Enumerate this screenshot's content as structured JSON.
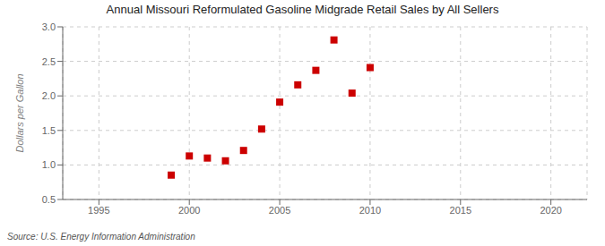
{
  "chart_data": {
    "type": "scatter",
    "title": "Annual Missouri Reformulated Gasoline Midgrade Retail Sales by All Sellers",
    "ylabel": "Dollars per Gallon",
    "annotations": [
      "Source: U.S. Energy Information Administration"
    ],
    "x": [
      1999,
      2000,
      2001,
      2002,
      2003,
      2004,
      2005,
      2006,
      2007,
      2008,
      2009,
      2010
    ],
    "values": [
      0.853,
      1.13,
      1.1,
      1.06,
      1.21,
      1.52,
      1.91,
      2.16,
      2.37,
      2.81,
      2.04,
      2.41
    ],
    "color": "#cc0000",
    "marker": "square",
    "xlim": [
      1993,
      2022
    ],
    "ylim": [
      0.5,
      3.0
    ],
    "xticks": [
      1995,
      2000,
      2005,
      2010,
      2015,
      2020
    ],
    "yticks": [
      0.5,
      {
        "value": 1.0,
        "label": "1.0"
      },
      1.5,
      {
        "value": 2.0,
        "label": "2.0"
      },
      2.5,
      {
        "value": 3.0,
        "label": "3.0"
      }
    ],
    "grid": true
  }
}
